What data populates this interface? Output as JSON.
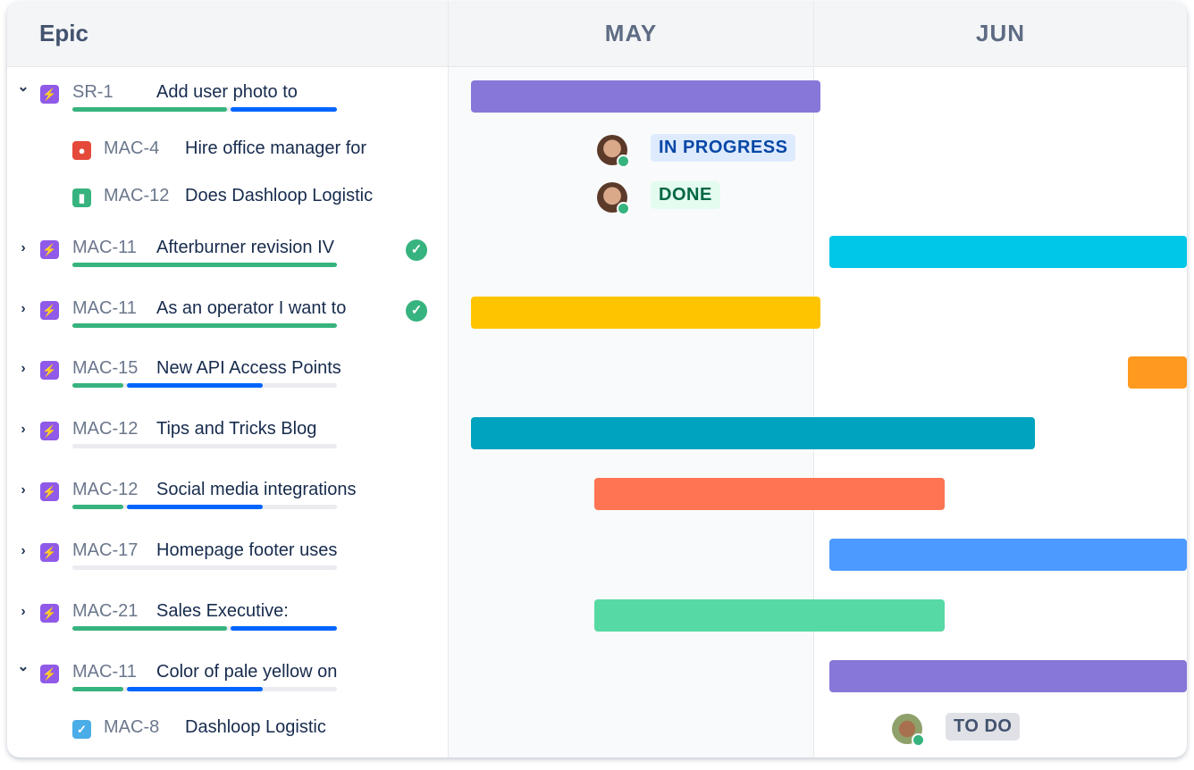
{
  "header": {
    "epic_label": "Epic",
    "months": [
      "MAY",
      "JUN"
    ]
  },
  "colors": {
    "epic_icon": "#8f5ae8",
    "bug_icon": "#e5493a",
    "story_icon": "#36b37e",
    "task_icon": "#4bade8",
    "done_green": "#36b37e",
    "progress_green": "#36b37e",
    "progress_blue": "#0065ff",
    "progress_gray": "#ebecf0"
  },
  "rows": [
    {
      "type": "epic",
      "expanded": true,
      "key": "SR-1",
      "title": "Add user photo to",
      "progress": {
        "done": 0.59,
        "in_progress": 0.41
      },
      "bar": {
        "start": "2024-05-01",
        "end": "2024-05-31",
        "color": "#8777d9"
      }
    },
    {
      "type": "bug",
      "key": "MAC-4",
      "title": "Hire office manager for",
      "assignee": "avatar-woman",
      "status": "IN PROGRESS",
      "status_bg": "#deebff",
      "status_color": "#0747a6"
    },
    {
      "type": "story",
      "key": "MAC-12",
      "title": "Does Dashloop Logistic",
      "assignee": "avatar-woman",
      "status": "DONE",
      "status_bg": "#e3fcef",
      "status_color": "#006644"
    },
    {
      "type": "epic",
      "expanded": false,
      "key": "MAC-11",
      "title": "Afterburner revision IV",
      "done": true,
      "progress": {
        "done": 1.0,
        "in_progress": 0
      },
      "bar": {
        "start": "2024-06-01",
        "end": "2024-06-30+",
        "color": "#00c7e6"
      }
    },
    {
      "type": "epic",
      "expanded": false,
      "key": "MAC-11",
      "title": "As an operator I want to",
      "done": true,
      "progress": {
        "done": 1.0,
        "in_progress": 0
      },
      "bar": {
        "start": "2024-05-01",
        "end": "2024-05-31",
        "color": "#ffc400"
      }
    },
    {
      "type": "epic",
      "expanded": false,
      "key": "MAC-15",
      "title": "New API Access Points",
      "progress": {
        "done": 0.2,
        "in_progress": 0.52
      },
      "bar": {
        "start": "2024-06-26",
        "end": "2024-06-30+",
        "color": "#ff991f"
      }
    },
    {
      "type": "epic",
      "expanded": false,
      "key": "MAC-12",
      "title": "Tips and Tricks Blog",
      "progress": {
        "done": 0,
        "in_progress": 0
      },
      "bar": {
        "start": "2024-05-01",
        "end": "2024-06-18",
        "color": "#00a3bf"
      }
    },
    {
      "type": "epic",
      "expanded": false,
      "key": "MAC-12",
      "title": "Social media integrations",
      "progress": {
        "done": 0.2,
        "in_progress": 0.52
      },
      "bar": {
        "start": "2024-05-11",
        "end": "2024-06-11",
        "color": "#ff7452"
      }
    },
    {
      "type": "epic",
      "expanded": false,
      "key": "MAC-17",
      "title": "Homepage footer uses",
      "progress": {
        "done": 0,
        "in_progress": 0
      },
      "bar": {
        "start": "2024-06-01",
        "end": "2024-06-30+",
        "color": "#4c9aff"
      }
    },
    {
      "type": "epic",
      "expanded": false,
      "key": "MAC-21",
      "title": "Sales Executive:",
      "progress": {
        "done": 0.59,
        "in_progress": 0.41
      },
      "bar": {
        "start": "2024-05-11",
        "end": "2024-06-11",
        "color": "#57d9a3"
      }
    },
    {
      "type": "epic",
      "expanded": true,
      "key": "MAC-11",
      "title": "Color of pale yellow on",
      "progress": {
        "done": 0.2,
        "in_progress": 0.52
      },
      "bar": {
        "start": "2024-06-01",
        "end": "2024-06-30+",
        "color": "#8777d9"
      }
    },
    {
      "type": "task",
      "key": "MAC-8",
      "title": "Dashloop Logistic",
      "assignee": "avatar-man",
      "status": "TO DO",
      "status_bg": "#dfe1e6",
      "status_color": "#42526e"
    }
  ]
}
